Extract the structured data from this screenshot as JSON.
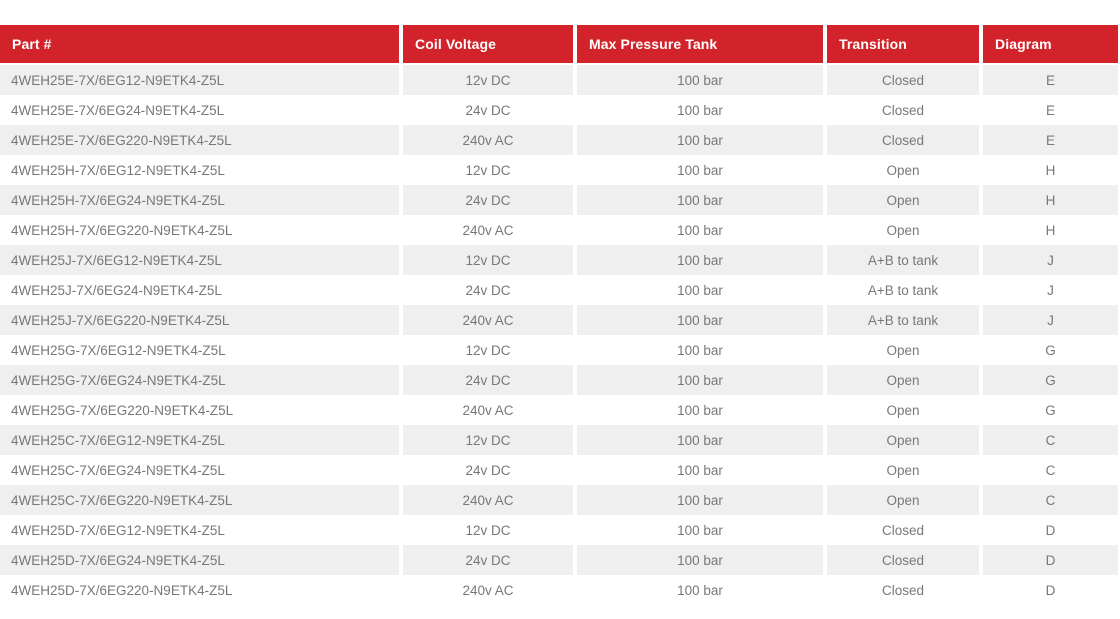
{
  "chart_data": {
    "type": "table",
    "columns": [
      {
        "key": "part-number",
        "label": "Part #",
        "align": "left"
      },
      {
        "key": "coil-voltage",
        "label": "Coil Voltage",
        "align": "center"
      },
      {
        "key": "max-pressure-tank",
        "label": "Max Pressure Tank",
        "align": "center"
      },
      {
        "key": "transition",
        "label": "Transition",
        "align": "center"
      },
      {
        "key": "diagram",
        "label": "Diagram",
        "align": "center"
      }
    ],
    "rows": [
      [
        "4WEH25E-7X/6EG12-N9ETK4-Z5L",
        "12v DC",
        "100 bar",
        "Closed",
        "E"
      ],
      [
        "4WEH25E-7X/6EG24-N9ETK4-Z5L",
        "24v DC",
        "100 bar",
        "Closed",
        "E"
      ],
      [
        "4WEH25E-7X/6EG220-N9ETK4-Z5L",
        "240v AC",
        "100 bar",
        "Closed",
        "E"
      ],
      [
        "4WEH25H-7X/6EG12-N9ETK4-Z5L",
        "12v DC",
        "100 bar",
        "Open",
        "H"
      ],
      [
        "4WEH25H-7X/6EG24-N9ETK4-Z5L",
        "24v DC",
        "100 bar",
        "Open",
        "H"
      ],
      [
        "4WEH25H-7X/6EG220-N9ETK4-Z5L",
        "240v AC",
        "100 bar",
        "Open",
        "H"
      ],
      [
        "4WEH25J-7X/6EG12-N9ETK4-Z5L",
        "12v DC",
        "100 bar",
        "A+B to tank",
        "J"
      ],
      [
        "4WEH25J-7X/6EG24-N9ETK4-Z5L",
        "24v DC",
        "100 bar",
        "A+B to tank",
        "J"
      ],
      [
        "4WEH25J-7X/6EG220-N9ETK4-Z5L",
        "240v AC",
        "100 bar",
        "A+B to tank",
        "J"
      ],
      [
        "4WEH25G-7X/6EG12-N9ETK4-Z5L",
        "12v DC",
        "100 bar",
        "Open",
        "G"
      ],
      [
        "4WEH25G-7X/6EG24-N9ETK4-Z5L",
        "24v DC",
        "100 bar",
        "Open",
        "G"
      ],
      [
        "4WEH25G-7X/6EG220-N9ETK4-Z5L",
        "240v AC",
        "100 bar",
        "Open",
        "G"
      ],
      [
        "4WEH25C-7X/6EG12-N9ETK4-Z5L",
        "12v DC",
        "100 bar",
        "Open",
        "C"
      ],
      [
        "4WEH25C-7X/6EG24-N9ETK4-Z5L",
        "24v DC",
        "100 bar",
        "Open",
        "C"
      ],
      [
        "4WEH25C-7X/6EG220-N9ETK4-Z5L",
        "240v AC",
        "100 bar",
        "Open",
        "C"
      ],
      [
        "4WEH25D-7X/6EG12-N9ETK4-Z5L",
        "12v DC",
        "100 bar",
        "Closed",
        "D"
      ],
      [
        "4WEH25D-7X/6EG24-N9ETK4-Z5L",
        "24v DC",
        "100 bar",
        "Closed",
        "D"
      ],
      [
        "4WEH25D-7X/6EG220-N9ETK4-Z5L",
        "240v AC",
        "100 bar",
        "Closed",
        "D"
      ]
    ]
  },
  "colors": {
    "header_bg": "#D2232A",
    "header_text": "#FFFFFF",
    "row_alt_bg": "#EFEFEF",
    "row_bg": "#FFFFFF",
    "body_text": "#77787B"
  }
}
